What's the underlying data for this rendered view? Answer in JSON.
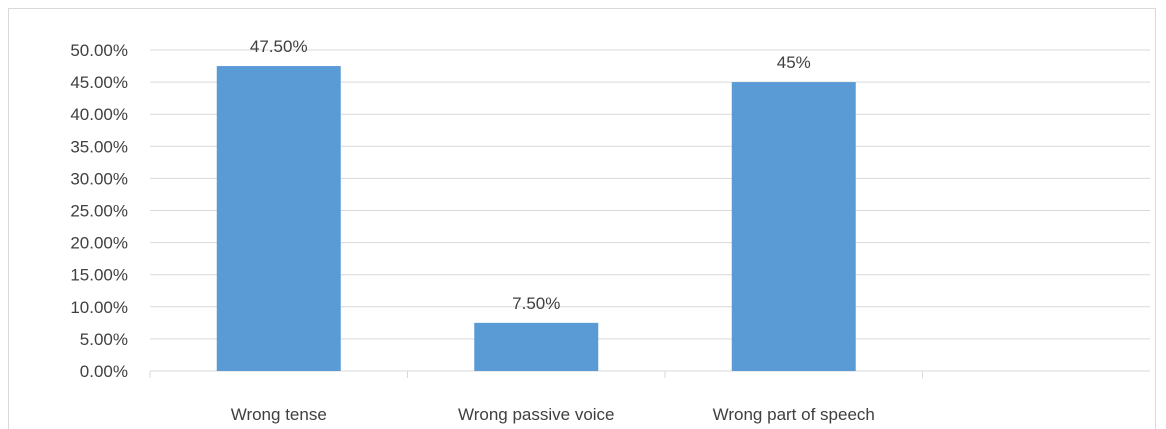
{
  "chart_data": {
    "type": "bar",
    "categories": [
      "Wrong tense",
      "Wrong passive voice",
      "Wrong part of speech",
      ""
    ],
    "values": [
      0.475,
      0.075,
      0.45,
      null
    ],
    "data_labels": [
      "47.50%",
      "7.50%",
      "45%",
      ""
    ],
    "ytick_labels": [
      "0.00%",
      "5.00%",
      "10.00%",
      "15.00%",
      "20.00%",
      "25.00%",
      "30.00%",
      "35.00%",
      "40.00%",
      "45.00%",
      "50.00%"
    ],
    "ylim": [
      0,
      0.5
    ],
    "gridlines": true,
    "bar_color": "#5b9bd5",
    "grid_color": "#d9d9d9",
    "text_color": "#404040"
  }
}
